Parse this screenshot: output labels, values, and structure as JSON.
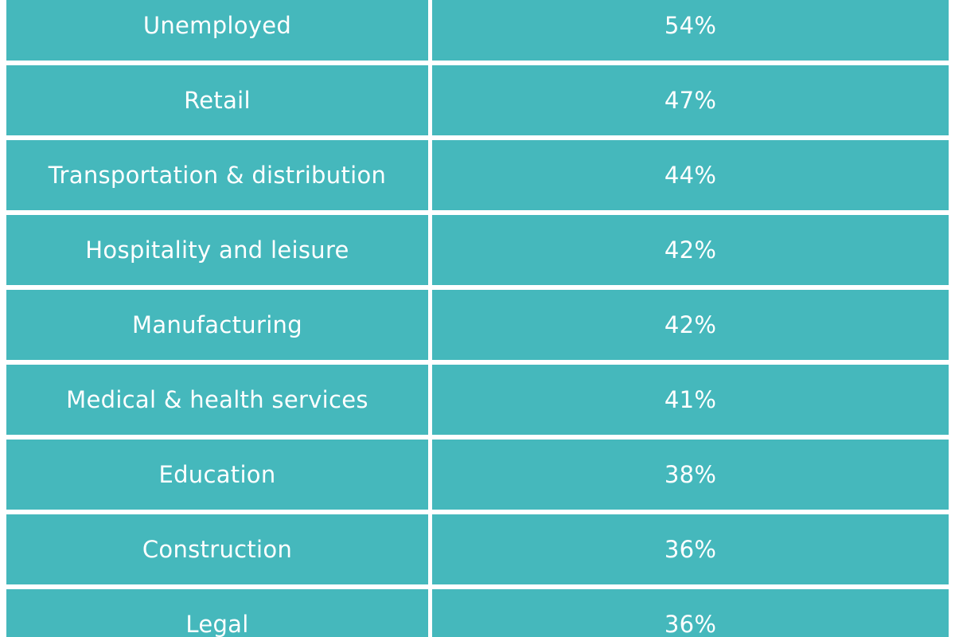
{
  "chart_data": {
    "type": "table",
    "rows": [
      {
        "category": "Unemployed",
        "value": "54%"
      },
      {
        "category": "Retail",
        "value": "47%"
      },
      {
        "category": "Transportation & distribution",
        "value": "44%"
      },
      {
        "category": "Hospitality and leisure",
        "value": "42%"
      },
      {
        "category": "Manufacturing",
        "value": "42%"
      },
      {
        "category": "Medical & health services",
        "value": "41%"
      },
      {
        "category": "Education",
        "value": "38%"
      },
      {
        "category": "Construction",
        "value": "36%"
      },
      {
        "category": "Legal",
        "value": "36%"
      }
    ]
  },
  "colors": {
    "cell_background": "#45b8bc",
    "cell_text": "#ffffff",
    "divider": "#ffffff"
  }
}
